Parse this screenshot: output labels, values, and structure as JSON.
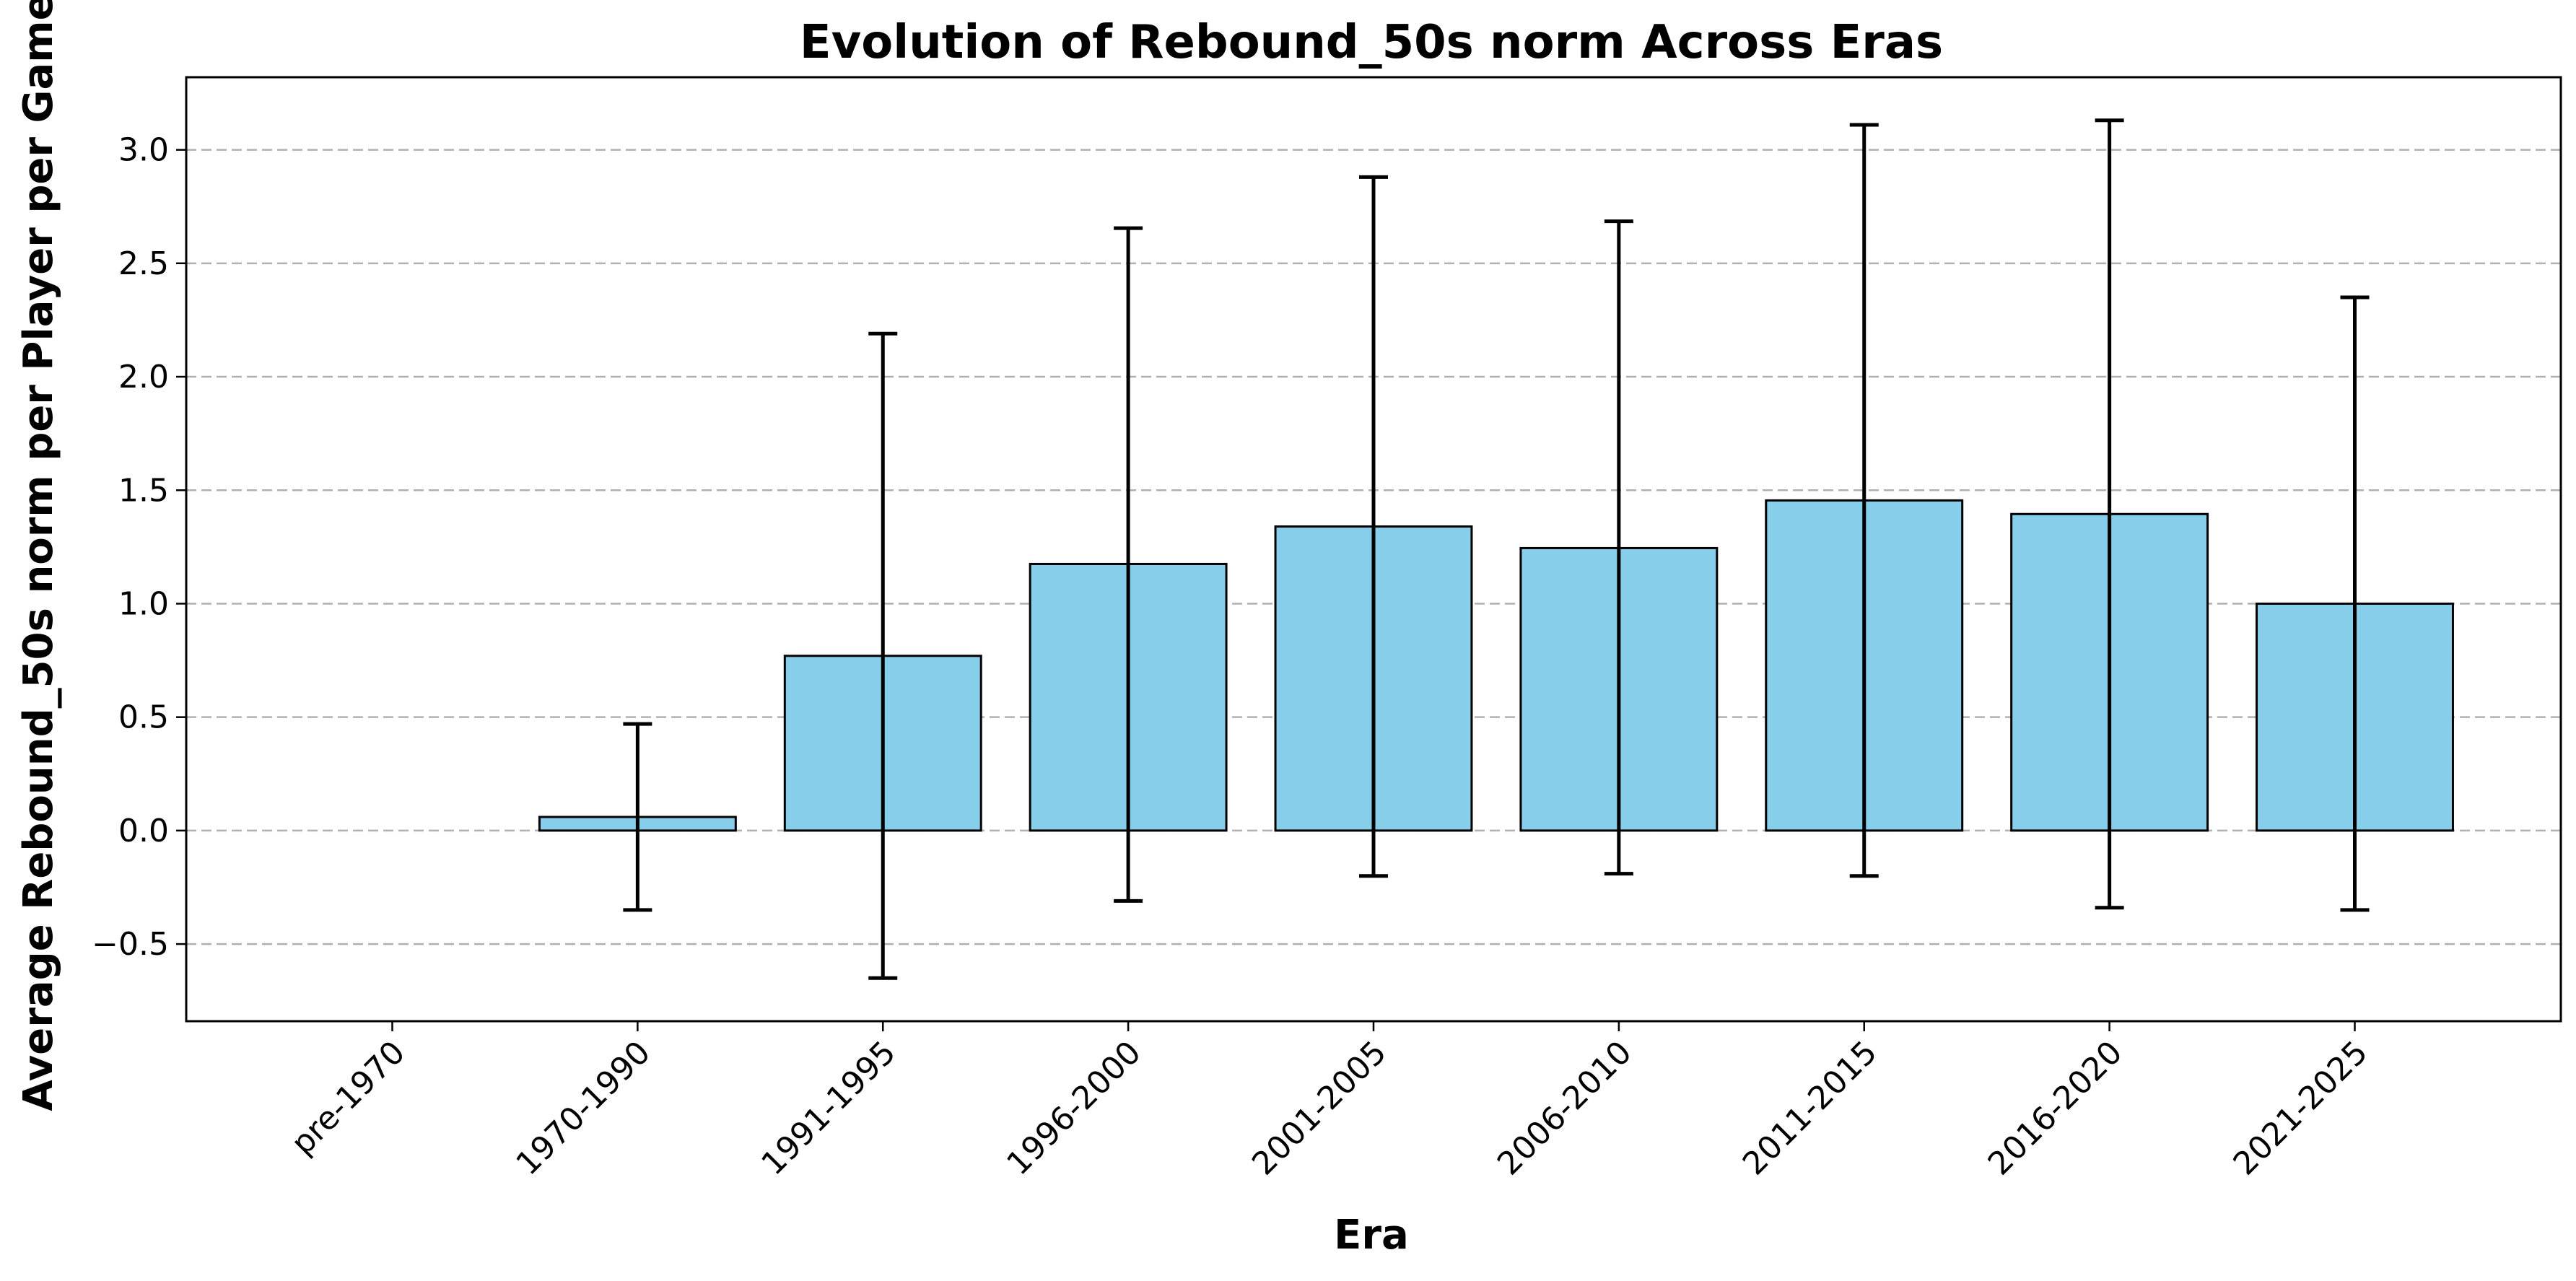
{
  "chart_data": {
    "type": "bar",
    "title": "Evolution of Rebound_50s norm Across Eras",
    "xlabel": "Era",
    "ylabel": "Average Rebound_50s norm per Player per Game",
    "categories": [
      "pre-1970",
      "1970-1990",
      "1991-1995",
      "1996-2000",
      "2001-2005",
      "2006-2010",
      "2011-2015",
      "2016-2020",
      "2021-2025"
    ],
    "values": [
      0.0,
      0.06,
      0.77,
      1.175,
      1.34,
      1.245,
      1.455,
      1.395,
      1.0
    ],
    "error_low": [
      0.0,
      -0.35,
      -0.65,
      -0.31,
      -0.2,
      -0.19,
      -0.2,
      -0.34,
      -0.35
    ],
    "error_high": [
      0.0,
      0.47,
      2.19,
      2.655,
      2.88,
      2.685,
      3.11,
      3.13,
      2.35
    ],
    "yticks": [
      "-0.5",
      "0.0",
      "0.5",
      "1.0",
      "1.5",
      "2.0",
      "2.5",
      "3.0"
    ],
    "ylim": [
      -0.84,
      3.32
    ],
    "grid": "y-dashed",
    "colors": {
      "bar_fill": "#87ceeb",
      "bar_edge": "#000000",
      "error_bar": "#000000",
      "grid": "#b0b0b0"
    }
  }
}
